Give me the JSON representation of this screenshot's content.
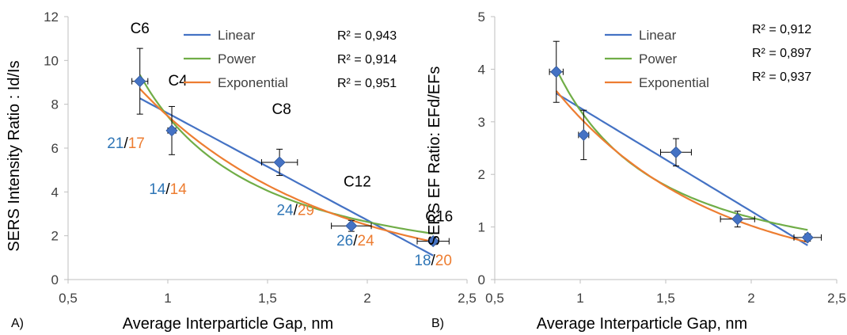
{
  "chart_data": [
    {
      "type": "scatter",
      "panel_label": "A)",
      "xlabel": "Average Interparticle Gap, nm",
      "ylabel": "SERS Intensity  Ratio : Id/Is",
      "xlim": [
        0.5,
        2.5
      ],
      "ylim": [
        0,
        12
      ],
      "xticks": [
        {
          "v": 0.5,
          "t": "0,5"
        },
        {
          "v": 1,
          "t": "1"
        },
        {
          "v": 1.5,
          "t": "1,5"
        },
        {
          "v": 2,
          "t": "2"
        },
        {
          "v": 2.5,
          "t": "2,5"
        }
      ],
      "yticks": [
        {
          "v": 0,
          "t": "0"
        },
        {
          "v": 2,
          "t": "2"
        },
        {
          "v": 4,
          "t": "4"
        },
        {
          "v": 6,
          "t": "6"
        },
        {
          "v": 8,
          "t": "8"
        },
        {
          "v": 10,
          "t": "10"
        },
        {
          "v": 12,
          "t": "12"
        }
      ],
      "grid": false,
      "legend_placement": "top-right",
      "points": [
        {
          "label": "C6",
          "x": 0.86,
          "y": 9.05,
          "xerr": 0.04,
          "yerr": 1.5
        },
        {
          "label": "C4",
          "x": 1.02,
          "y": 6.8,
          "xerr": 0.02,
          "yerr": 1.1
        },
        {
          "label": "C8",
          "x": 1.56,
          "y": 5.35,
          "xerr": 0.09,
          "yerr": 0.6
        },
        {
          "label": "C12",
          "x": 1.92,
          "y": 2.45,
          "xerr": 0.1,
          "yerr": 0.25
        },
        {
          "label": "C16",
          "x": 2.33,
          "y": 1.75,
          "xerr": 0.08,
          "yerr": 0.15
        }
      ],
      "fits": [
        {
          "name": "Linear",
          "color": "#4472C4",
          "kind": "linear",
          "a": 12.47,
          "b": -4.88,
          "r2": "R² = 0,943"
        },
        {
          "name": "Power",
          "color": "#70AD47",
          "kind": "power",
          "a": 7.45,
          "b": -1.5,
          "r2": "R² = 0,914"
        },
        {
          "name": "Exponential",
          "color": "#ED7D31",
          "kind": "exp",
          "a": 22.42,
          "b": -1.1,
          "r2": "R² = 0,951"
        }
      ],
      "fit_x_range": [
        0.86,
        2.33
      ],
      "annotations": [
        {
          "x": 0.86,
          "y": 11.25,
          "parts": [
            {
              "t": "C6",
              "c": "#000000"
            }
          ]
        },
        {
          "x": 1.05,
          "y": 8.85,
          "parts": [
            {
              "t": "C4",
              "c": "#000000"
            }
          ]
        },
        {
          "x": 1.57,
          "y": 7.55,
          "parts": [
            {
              "t": "C8",
              "c": "#000000"
            }
          ]
        },
        {
          "x": 1.95,
          "y": 4.25,
          "parts": [
            {
              "t": "C12",
              "c": "#000000"
            }
          ]
        },
        {
          "x": 2.36,
          "y": 2.65,
          "parts": [
            {
              "t": "C16",
              "c": "#000000"
            }
          ]
        },
        {
          "x": 0.79,
          "y": 6.0,
          "parts": [
            {
              "t": "21",
              "c": "#2E75B6"
            },
            {
              "t": "/",
              "c": "#000000"
            },
            {
              "t": "17",
              "c": "#ED7D31"
            }
          ]
        },
        {
          "x": 1.0,
          "y": 3.9,
          "parts": [
            {
              "t": "14",
              "c": "#2E75B6"
            },
            {
              "t": "/",
              "c": "#000000"
            },
            {
              "t": "14",
              "c": "#ED7D31"
            }
          ]
        },
        {
          "x": 1.64,
          "y": 2.95,
          "parts": [
            {
              "t": "24",
              "c": "#2E75B6"
            },
            {
              "t": "/",
              "c": "#000000"
            },
            {
              "t": "29",
              "c": "#ED7D31"
            }
          ]
        },
        {
          "x": 1.94,
          "y": 1.55,
          "parts": [
            {
              "t": "26",
              "c": "#2E75B6"
            },
            {
              "t": "/",
              "c": "#000000"
            },
            {
              "t": "24",
              "c": "#ED7D31"
            }
          ]
        },
        {
          "x": 2.33,
          "y": 0.65,
          "parts": [
            {
              "t": "18",
              "c": "#2E75B6"
            },
            {
              "t": "/",
              "c": "#000000"
            },
            {
              "t": "20",
              "c": "#ED7D31"
            }
          ]
        }
      ]
    },
    {
      "type": "scatter",
      "panel_label": "B)",
      "xlabel": "Average Interparticle Gap, nm",
      "ylabel": "SERS EF  Ratio:  EFd/EFs",
      "xlim": [
        0.5,
        2.5
      ],
      "ylim": [
        0,
        5
      ],
      "xticks": [
        {
          "v": 0.5,
          "t": "0,5"
        },
        {
          "v": 1,
          "t": "1"
        },
        {
          "v": 1.5,
          "t": "1,5"
        },
        {
          "v": 2,
          "t": "2"
        },
        {
          "v": 2.5,
          "t": "2,5"
        }
      ],
      "yticks": [
        {
          "v": 0,
          "t": "0"
        },
        {
          "v": 1,
          "t": "1"
        },
        {
          "v": 2,
          "t": "2"
        },
        {
          "v": 3,
          "t": "3"
        },
        {
          "v": 4,
          "t": "4"
        },
        {
          "v": 5,
          "t": "5"
        }
      ],
      "grid": false,
      "legend_placement": "top-right",
      "points": [
        {
          "label": "",
          "x": 0.86,
          "y": 3.95,
          "xerr": 0.04,
          "yerr": 0.58
        },
        {
          "label": "",
          "x": 1.02,
          "y": 2.75,
          "xerr": 0.03,
          "yerr": 0.47
        },
        {
          "label": "",
          "x": 1.56,
          "y": 2.42,
          "xerr": 0.09,
          "yerr": 0.26
        },
        {
          "label": "",
          "x": 1.92,
          "y": 1.15,
          "xerr": 0.1,
          "yerr": 0.15
        },
        {
          "label": "",
          "x": 2.33,
          "y": 0.8,
          "xerr": 0.08,
          "yerr": 0.07
        }
      ],
      "fits": [
        {
          "name": "Linear",
          "color": "#4472C4",
          "kind": "linear",
          "a": 5.233,
          "b": -1.967,
          "r2": "R² = 0,912"
        },
        {
          "name": "Power",
          "color": "#70AD47",
          "kind": "power",
          "a": 3.22,
          "b": -1.45,
          "r2": "R² = 0,897"
        },
        {
          "name": "Exponential",
          "color": "#ED7D31",
          "kind": "exp",
          "a": 9.24,
          "b": -1.1,
          "r2": "R² = 0,937"
        }
      ],
      "fit_x_range": [
        0.86,
        2.33
      ],
      "annotations": []
    }
  ]
}
